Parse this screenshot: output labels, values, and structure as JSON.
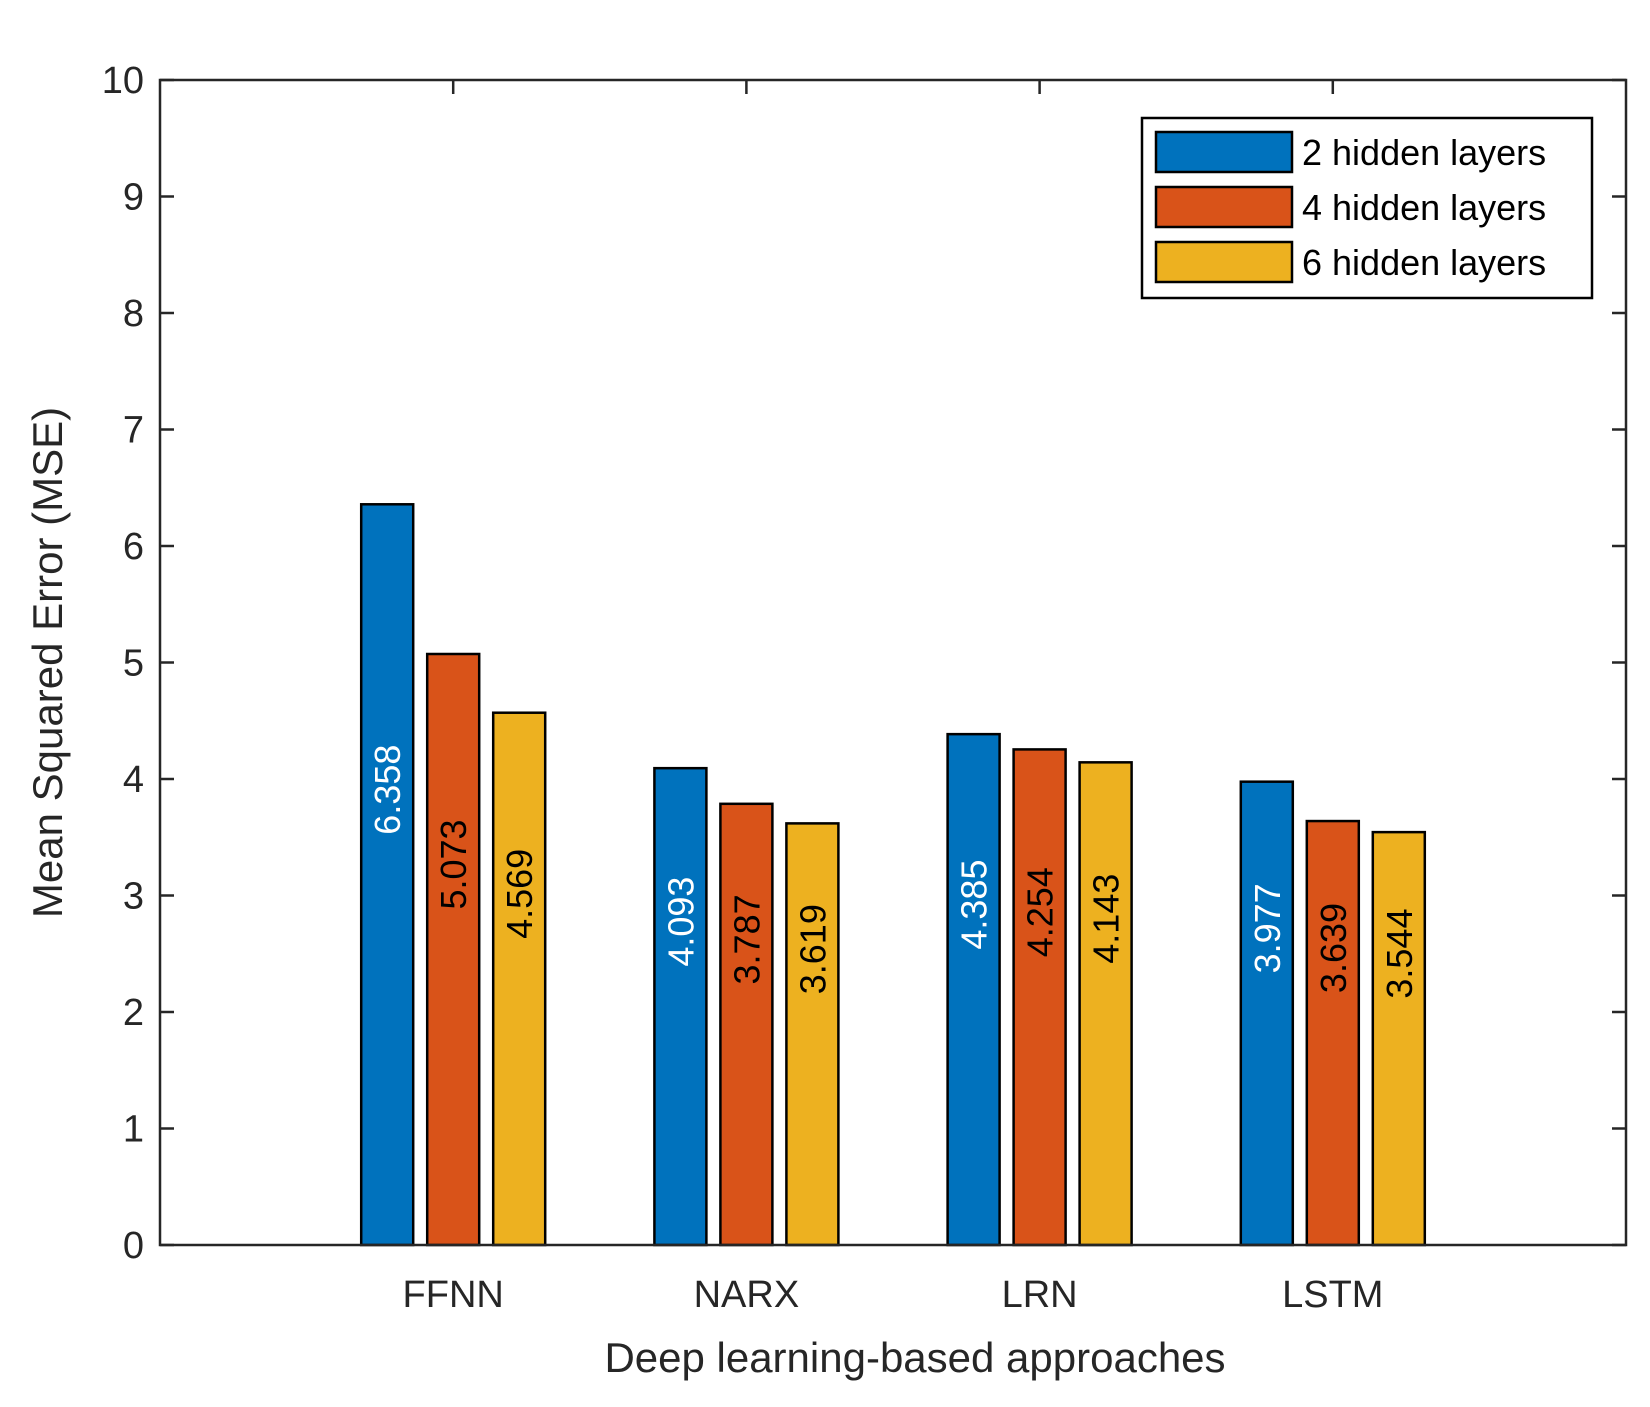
{
  "chart_data": {
    "type": "bar",
    "title": "",
    "xlabel": "Deep learning-based approaches",
    "ylabel": "Mean Squared Error (MSE)",
    "ylim": [
      0,
      10
    ],
    "yticks": [
      "0",
      "1",
      "2",
      "3",
      "4",
      "5",
      "6",
      "7",
      "8",
      "9",
      "10"
    ],
    "categories": [
      "FFNN",
      "NARX",
      "LRN",
      "LSTM"
    ],
    "series": [
      {
        "name": "2 hidden layers",
        "color": "#0072BD",
        "label_color": "#ffffff",
        "values": [
          6.358,
          4.093,
          4.385,
          3.977
        ],
        "labels": [
          "6.358",
          "4.093",
          "4.385",
          "3.977"
        ]
      },
      {
        "name": "4 hidden layers",
        "color": "#D95319",
        "label_color": "#000000",
        "values": [
          5.073,
          3.787,
          4.254,
          3.639
        ],
        "labels": [
          "5.073",
          "3.787",
          "4.254",
          "3.639"
        ]
      },
      {
        "name": "6 hidden layers",
        "color": "#EDB120",
        "label_color": "#000000",
        "values": [
          4.569,
          3.619,
          4.143,
          3.544
        ],
        "labels": [
          "4.569",
          "3.619",
          "4.143",
          "3.544"
        ]
      }
    ],
    "legend_position": "top-right",
    "grid": false
  }
}
